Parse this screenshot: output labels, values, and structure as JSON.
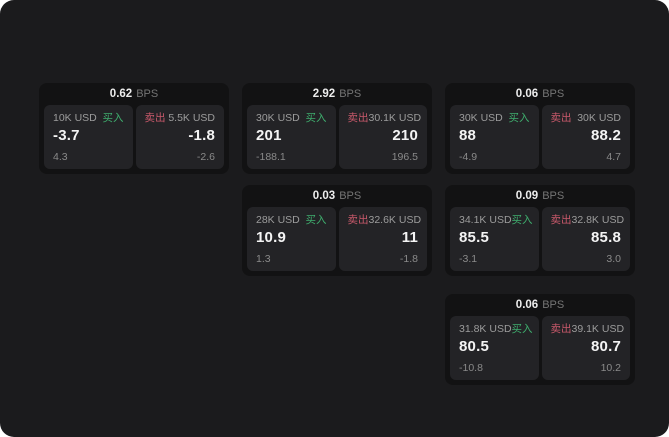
{
  "labels": {
    "bps_unit": "BPS",
    "buy": "买入",
    "sell": "卖出"
  },
  "colors": {
    "background": "#1b1b1d",
    "card": "#121213",
    "panel": "#232326",
    "buy": "#3fae6e",
    "sell": "#c9596b"
  },
  "cards": [
    {
      "bps": "0.62",
      "buy": {
        "amount": "10K USD",
        "price": "-3.7",
        "change": "4.3"
      },
      "sell": {
        "amount": "5.5K USD",
        "price": "-1.8",
        "change": "-2.6"
      }
    },
    {
      "bps": "2.92",
      "buy": {
        "amount": "30K USD",
        "price": "201",
        "change": "-188.1"
      },
      "sell": {
        "amount": "30.1K USD",
        "price": "210",
        "change": "196.5"
      }
    },
    {
      "bps": "0.06",
      "buy": {
        "amount": "30K USD",
        "price": "88",
        "change": "-4.9"
      },
      "sell": {
        "amount": "30K USD",
        "price": "88.2",
        "change": "4.7"
      }
    },
    {
      "bps": "0.03",
      "buy": {
        "amount": "28K USD",
        "price": "10.9",
        "change": "1.3"
      },
      "sell": {
        "amount": "32.6K USD",
        "price": "11",
        "change": "-1.8"
      }
    },
    {
      "bps": "0.09",
      "buy": {
        "amount": "34.1K USD",
        "price": "85.5",
        "change": "-3.1"
      },
      "sell": {
        "amount": "32.8K USD",
        "price": "85.8",
        "change": "3.0"
      }
    },
    {
      "bps": "0.06",
      "buy": {
        "amount": "31.8K USD",
        "price": "80.5",
        "change": "-10.8"
      },
      "sell": {
        "amount": "39.1K USD",
        "price": "80.7",
        "change": "10.2"
      }
    }
  ]
}
